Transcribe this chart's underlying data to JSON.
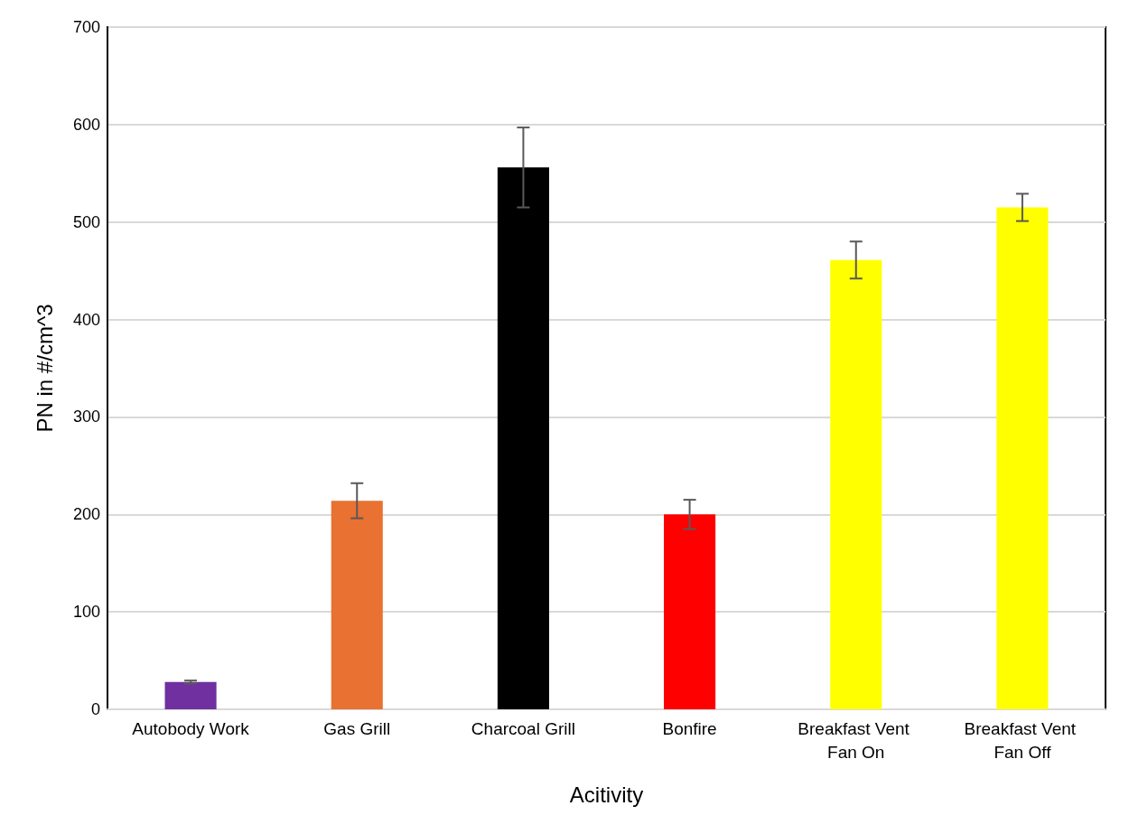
{
  "chart_data": {
    "type": "bar",
    "xlabel": "Acitivity",
    "ylabel": "PN in #/cm^3",
    "categories": [
      "Autobody Work",
      "Gas Grill",
      "Charcoal Grill",
      "Bonfire",
      "Breakfast Vent Fan On",
      "Breakfast Vent Fan Off"
    ],
    "values": [
      28,
      214,
      556,
      200,
      461,
      515
    ],
    "errors": [
      1.5,
      18,
      41,
      15,
      19,
      14
    ],
    "colors": [
      "#7030a0",
      "#e97132",
      "#000000",
      "#ff0000",
      "#ffff00",
      "#ffff00"
    ],
    "ylim": [
      0,
      700
    ],
    "yticks": [
      0,
      100,
      200,
      300,
      400,
      500,
      600,
      700
    ],
    "grid": "y"
  }
}
